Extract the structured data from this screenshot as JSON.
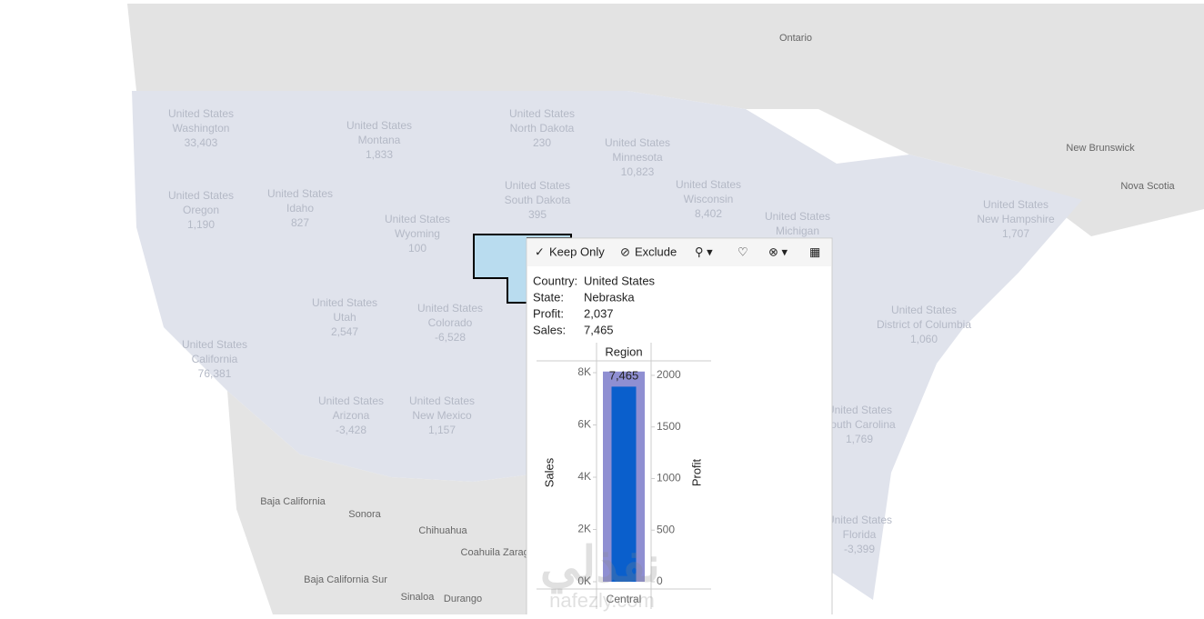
{
  "map": {
    "places": [
      {
        "name": "Ontario"
      },
      {
        "name": "New Brunswick"
      },
      {
        "name": "Nova Scotia"
      },
      {
        "name": "Baja California"
      },
      {
        "name": "Sonora"
      },
      {
        "name": "Chihuahua"
      },
      {
        "name": "Coahuila Zaragoza"
      },
      {
        "name": "Baja California Sur"
      },
      {
        "name": "Sinaloa"
      },
      {
        "name": "Durango"
      }
    ],
    "states": [
      {
        "country": "United States",
        "state": "Washington",
        "value": "33,403"
      },
      {
        "country": "United States",
        "state": "Montana",
        "value": "1,833"
      },
      {
        "country": "United States",
        "state": "North Dakota",
        "value": "230"
      },
      {
        "country": "United States",
        "state": "Minnesota",
        "value": "10,823"
      },
      {
        "country": "United States",
        "state": "Oregon",
        "value": "1,190"
      },
      {
        "country": "United States",
        "state": "Idaho",
        "value": "827"
      },
      {
        "country": "United States",
        "state": "South Dakota",
        "value": "395"
      },
      {
        "country": "United States",
        "state": "Wisconsin",
        "value": "8,402"
      },
      {
        "country": "United States",
        "state": "Wyoming",
        "value": "100"
      },
      {
        "country": "United States",
        "state": "Michigan",
        "value": ""
      },
      {
        "country": "United States",
        "state": "New Hampshire",
        "value": "1,707"
      },
      {
        "country": "United States",
        "state": "Utah",
        "value": "2,547"
      },
      {
        "country": "United States",
        "state": "Colorado",
        "value": "-6,528"
      },
      {
        "country": "United States",
        "state": "California",
        "value": "76,381"
      },
      {
        "country": "United States",
        "state": "Arizona",
        "value": "-3,428"
      },
      {
        "country": "United States",
        "state": "New Mexico",
        "value": "1,157"
      },
      {
        "country": "United States",
        "state": "District of Columbia",
        "value": "1,060"
      },
      {
        "country": "United States",
        "state": "South Carolina",
        "value": "1,769"
      },
      {
        "country": "United States",
        "state": "Florida",
        "value": "-3,399"
      }
    ]
  },
  "tooltip": {
    "toolbar": {
      "keep": "Keep Only",
      "exclude": "Exclude"
    },
    "fields": [
      {
        "label": "Country:",
        "value": "United States"
      },
      {
        "label": "State:",
        "value": "Nebraska"
      },
      {
        "label": "Profit:",
        "value": "2,037"
      },
      {
        "label": "Sales:",
        "value": "7,465"
      }
    ]
  },
  "chart_data": {
    "type": "bar",
    "column_header": "Region",
    "categories": [
      "Central"
    ],
    "ylabel": "Sales",
    "y2label": "Profit",
    "series": [
      {
        "name": "Profit",
        "axis": "y2",
        "color": "#8f8fd2",
        "values": [
          2037
        ]
      },
      {
        "name": "Sales",
        "axis": "y",
        "color": "#0a5fcc",
        "values": [
          7465
        ],
        "value_labels": [
          "7,465"
        ]
      }
    ],
    "ylim": [
      0,
      8000
    ],
    "yticks": [
      {
        "value": 0,
        "label": "0K"
      },
      {
        "value": 2000,
        "label": "2K"
      },
      {
        "value": 4000,
        "label": "4K"
      },
      {
        "value": 6000,
        "label": "6K"
      },
      {
        "value": 8000,
        "label": "8K"
      }
    ],
    "y2lim": [
      0,
      2026
    ],
    "y2ticks": [
      0,
      500,
      1000,
      1500,
      2000
    ]
  },
  "watermark": {
    "arabic": "نفذلي",
    "latin": "nafezly.com"
  }
}
